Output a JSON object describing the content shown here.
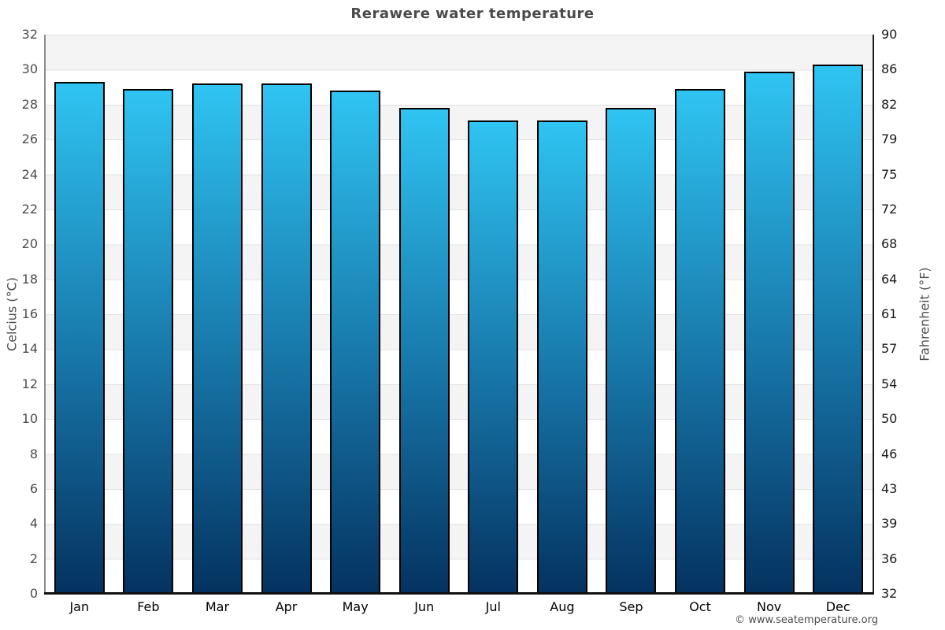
{
  "title": "Rerawere water temperature",
  "watermark": "© www.seatemperature.org",
  "axes": {
    "left_title": "Celcius (°C)",
    "right_title": "Fahrenheit (°F)"
  },
  "chart_data": {
    "type": "bar",
    "title": "Rerawere water temperature",
    "categories": [
      "Jan",
      "Feb",
      "Mar",
      "Apr",
      "May",
      "Jun",
      "Jul",
      "Aug",
      "Sep",
      "Oct",
      "Nov",
      "Dec"
    ],
    "values": [
      29.3,
      28.9,
      29.2,
      29.2,
      28.8,
      27.8,
      27.1,
      27.1,
      27.8,
      28.9,
      29.9,
      30.3
    ],
    "unit": "°C",
    "xlabel": "",
    "ylabel_left": "Celcius (°C)",
    "ylabel_right": "Fahrenheit (°F)",
    "ylim_celsius": [
      0,
      32
    ],
    "yticks_celsius": [
      32,
      30,
      28,
      26,
      24,
      22,
      20,
      18,
      16,
      14,
      12,
      10,
      8,
      6,
      4,
      2,
      0
    ],
    "yticks_fahrenheit": [
      90,
      86,
      82,
      79,
      75,
      72,
      68,
      64,
      61,
      57,
      54,
      50,
      46,
      43,
      39,
      36,
      32
    ],
    "grid": "horizontal-bands-alternating",
    "legend": "none"
  },
  "colors": {
    "bar_gradient_top": "#2fc4f2",
    "bar_gradient_mid": "#1879ab",
    "bar_gradient_bottom": "#043260",
    "bar_border": "#000000",
    "band_gray": "#f4f4f4",
    "band_white": "#ffffff",
    "gridline": "#e2e2e2",
    "left_axis_line": "#8c8c8c",
    "right_axis_line": "#1a1a1a",
    "bottom_axis_line": "#111111",
    "title_text": "#4a4a4a",
    "celsius_tick_text": "#4d4d4d",
    "fahrenheit_tick_text": "#1a1a1a",
    "month_tick_text": "#000000",
    "watermark_text": "#4d4d4d"
  }
}
